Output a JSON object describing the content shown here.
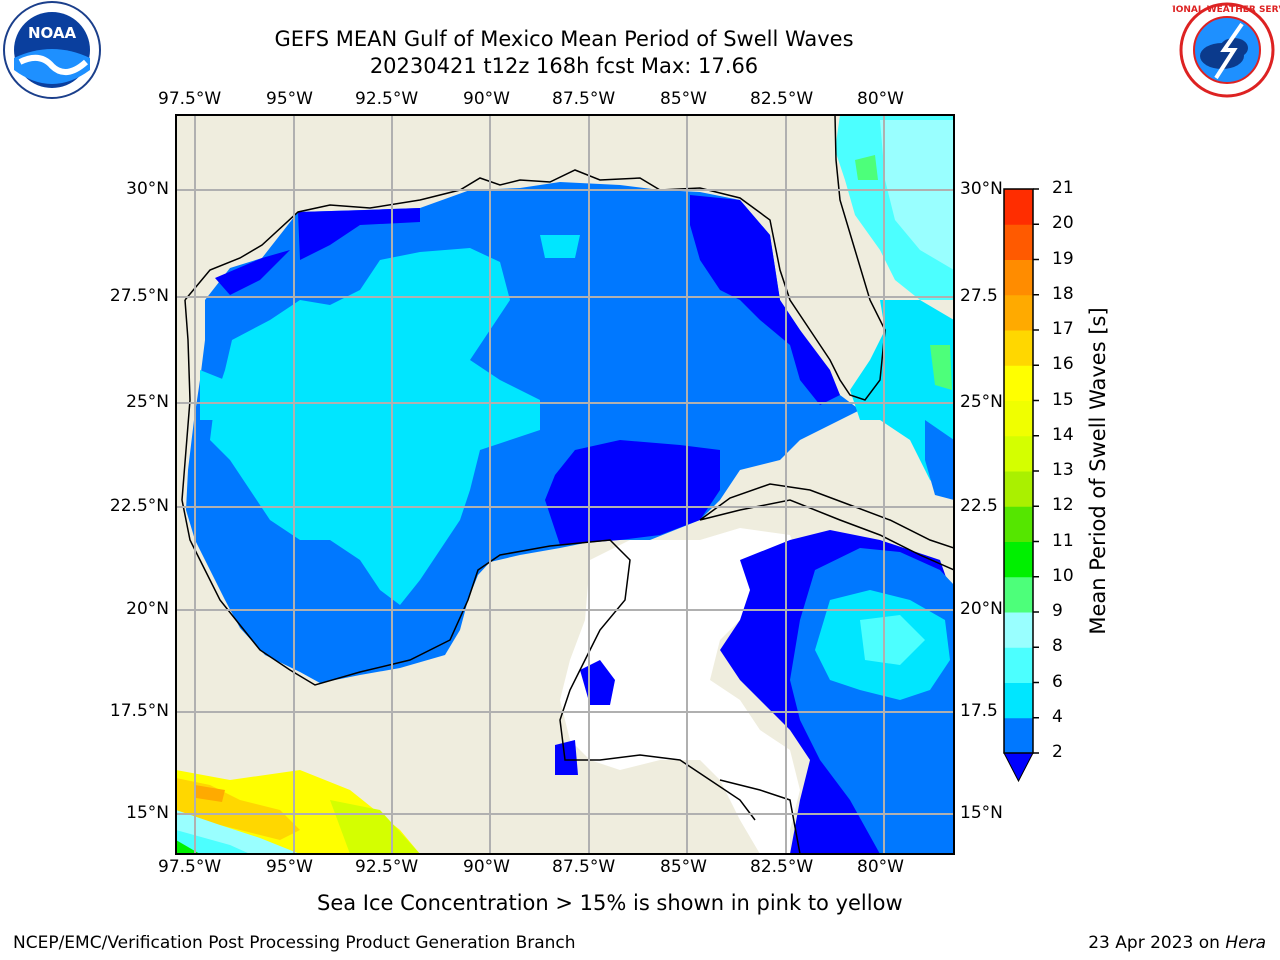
{
  "header": {
    "title_line1": "GEFS MEAN Gulf of Mexico Mean Period of Swell Waves",
    "title_line2": "20230421 t12z 168h fcst   Max: 17.66"
  },
  "logos": {
    "left": {
      "name": "noaa-logo",
      "text": "NOAA"
    },
    "right": {
      "name": "nws-logo",
      "text": "NATIONAL WEATHER SERVICE"
    }
  },
  "map": {
    "lon_labels": [
      "97.5°W",
      "95°W",
      "92.5°W",
      "90°W",
      "87.5°W",
      "85°W",
      "82.5°W",
      "80°W"
    ],
    "lat_labels_left": [
      "30°N",
      "27.5°N",
      "25°N",
      "22.5°N",
      "20°N",
      "17.5°N",
      "15°N"
    ],
    "lat_labels_right": [
      "30°N",
      "27.5",
      "25°N",
      "22.5",
      "20°N",
      "17.5",
      "15°N"
    ],
    "extent": {
      "lon": [
        -98,
        -78.2
      ],
      "lat": [
        14.1,
        31.8
      ]
    },
    "colors": {
      "land": "#efedde",
      "grid": "#b0b0b0",
      "coast": "#000000",
      "nodata": "#ffffff"
    }
  },
  "colorbar": {
    "label": "Mean Period of Swell Waves [s]",
    "ticks": [
      "2",
      "4",
      "6",
      "8",
      "9",
      "10",
      "11",
      "12",
      "13",
      "14",
      "15",
      "16",
      "17",
      "18",
      "19",
      "20",
      "21"
    ],
    "colors": [
      "#0078ff",
      "#00e6ff",
      "#4cffff",
      "#99ffff",
      "#4dff7a",
      "#00f000",
      "#55e600",
      "#aaf000",
      "#d4ff00",
      "#f0ff00",
      "#ffff00",
      "#ffd700",
      "#ffaa00",
      "#ff8c00",
      "#ff5a00",
      "#ff2d00"
    ],
    "extend_color": "#0000ff"
  },
  "caption": "Sea Ice Concentration > 15% is shown in pink to yellow",
  "footer": {
    "left": "NCEP/EMC/Verification Post Processing Product Generation Branch",
    "right_prefix": "23 Apr 2023 on ",
    "right_host": "Hera"
  }
}
